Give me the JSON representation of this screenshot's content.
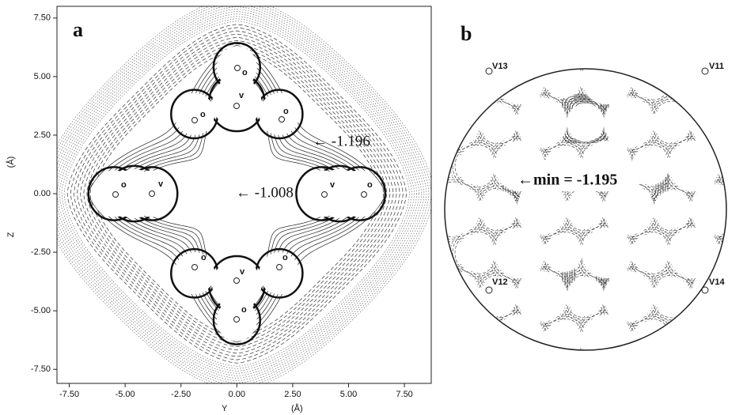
{
  "panels": [
    {
      "label": "a",
      "x_axis": {
        "label": "Y",
        "unit": "(Å)",
        "ticks": [
          {
            "value": -7.5,
            "label": "-7.50"
          },
          {
            "value": -5,
            "label": "-5.00"
          },
          {
            "value": -2.5,
            "label": "-2.50"
          },
          {
            "value": 0,
            "label": "0.00"
          },
          {
            "value": 2.5,
            "label": "2.50"
          },
          {
            "value": 5,
            "label": "5.00"
          },
          {
            "value": 7.5,
            "label": "7.50"
          }
        ]
      },
      "y_axis": {
        "label": "Z",
        "unit": "(Å)",
        "ticks": [
          {
            "value": -7.5,
            "label": "-7.50"
          },
          {
            "value": -5,
            "label": "-5.00"
          },
          {
            "value": -2.5,
            "label": "-2.50"
          },
          {
            "value": 0,
            "label": "0.00"
          },
          {
            "value": 2.5,
            "label": "2.50"
          },
          {
            "value": 5,
            "label": "5.00"
          },
          {
            "value": 7.5,
            "label": "7.50"
          }
        ]
      },
      "xlim": [
        -8.05,
        8.7
      ],
      "ylim": [
        -8.1,
        8.0
      ],
      "annotations": [
        "← -1.196",
        "← -1.008"
      ],
      "site_labels": [
        "o",
        "v",
        "o",
        "o",
        "o",
        "v",
        "v",
        "o",
        "o",
        "o",
        "v",
        "o"
      ]
    },
    {
      "label": "b",
      "annotations": [
        "←min = -1.195"
      ],
      "site_labels": [
        "V13",
        "V11",
        "V12",
        "V14"
      ]
    }
  ]
}
